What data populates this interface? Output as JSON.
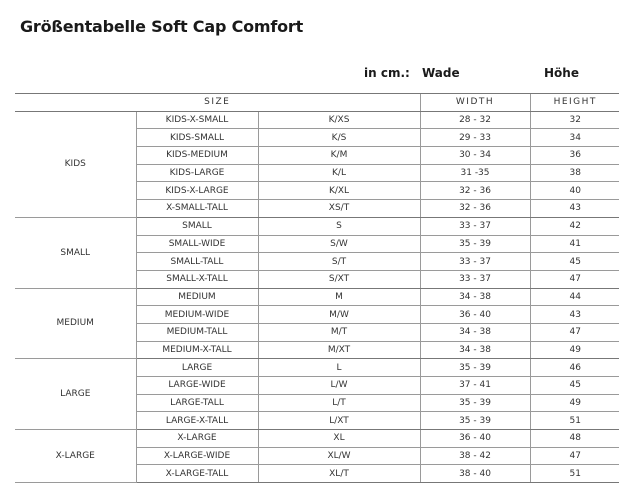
{
  "title": "Größentabelle Soft Cap Comfort",
  "header": {
    "unit": "in cm.:",
    "wade": "Wade",
    "hoehe": "Höhe"
  },
  "columns": {
    "size": "SIZE",
    "width": "WIDTH",
    "height": "HEIGHT"
  },
  "groups": [
    {
      "name": "KIDS",
      "rows": [
        {
          "size": "KIDS-X-SMALL",
          "code": "K/XS",
          "width": "28 - 32",
          "height": "32"
        },
        {
          "size": "KIDS-SMALL",
          "code": "K/S",
          "width": "29 - 33",
          "height": "34"
        },
        {
          "size": "KIDS-MEDIUM",
          "code": "K/M",
          "width": "30 - 34",
          "height": "36"
        },
        {
          "size": "KIDS-LARGE",
          "code": "K/L",
          "width": "31 -35",
          "height": "38"
        },
        {
          "size": "KIDS-X-LARGE",
          "code": "K/XL",
          "width": "32 - 36",
          "height": "40"
        },
        {
          "size": "X-SMALL-TALL",
          "code": "XS/T",
          "width": "32 - 36",
          "height": "43"
        }
      ]
    },
    {
      "name": "SMALL",
      "rows": [
        {
          "size": "SMALL",
          "code": "S",
          "width": "33 - 37",
          "height": "42"
        },
        {
          "size": "SMALL-WIDE",
          "code": "S/W",
          "width": "35 - 39",
          "height": "41"
        },
        {
          "size": "SMALL-TALL",
          "code": "S/T",
          "width": "33 - 37",
          "height": "45"
        },
        {
          "size": "SMALL-X-TALL",
          "code": "S/XT",
          "width": "33 - 37",
          "height": "47"
        }
      ]
    },
    {
      "name": "MEDIUM",
      "rows": [
        {
          "size": "MEDIUM",
          "code": "M",
          "width": "34 - 38",
          "height": "44"
        },
        {
          "size": "MEDIUM-WIDE",
          "code": "M/W",
          "width": "36 - 40",
          "height": "43"
        },
        {
          "size": "MEDIUM-TALL",
          "code": "M/T",
          "width": "34 - 38",
          "height": "47"
        },
        {
          "size": "MEDIUM-X-TALL",
          "code": "M/XT",
          "width": "34 - 38",
          "height": "49"
        }
      ]
    },
    {
      "name": "LARGE",
      "rows": [
        {
          "size": "LARGE",
          "code": "L",
          "width": "35 - 39",
          "height": "46"
        },
        {
          "size": "LARGE-WIDE",
          "code": "L/W",
          "width": "37 - 41",
          "height": "45"
        },
        {
          "size": "LARGE-TALL",
          "code": "L/T",
          "width": "35 - 39",
          "height": "49"
        },
        {
          "size": "LARGE-X-TALL",
          "code": "L/XT",
          "width": "35 - 39",
          "height": "51"
        }
      ]
    },
    {
      "name": "X-LARGE",
      "rows": [
        {
          "size": "X-LARGE",
          "code": "XL",
          "width": "36 - 40",
          "height": "48"
        },
        {
          "size": "X-LARGE-WIDE",
          "code": "XL/W",
          "width": "38 - 42",
          "height": "47"
        },
        {
          "size": "X-LARGE-TALL",
          "code": "XL/T",
          "width": "38 - 40",
          "height": "51"
        }
      ]
    }
  ]
}
